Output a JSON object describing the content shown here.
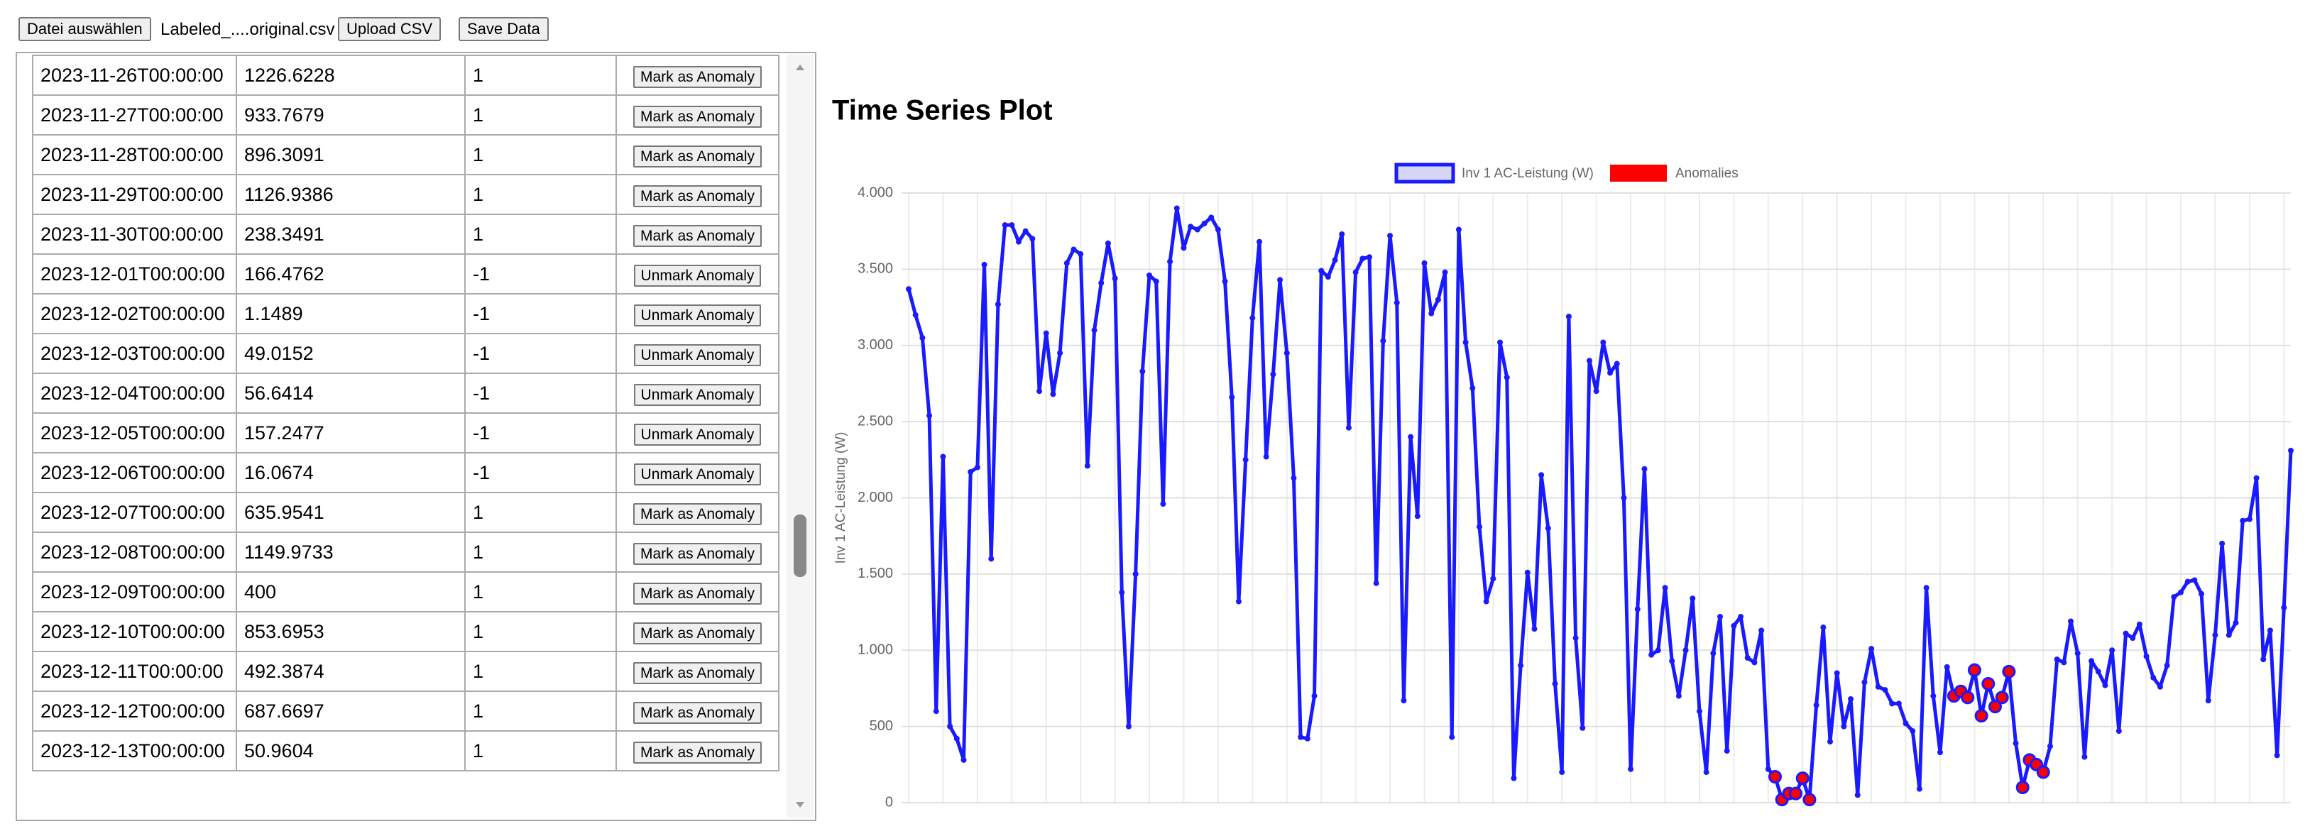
{
  "toolbar": {
    "choose_file": "Datei auswählen",
    "file_name": "Labeled_....original.csv",
    "upload": "Upload CSV",
    "save": "Save Data"
  },
  "table": {
    "rows": [
      [
        "2023-11-26T00:00:00",
        1226.6228,
        1,
        "Mark as Anomaly"
      ],
      [
        "2023-11-27T00:00:00",
        933.7679,
        1,
        "Mark as Anomaly"
      ],
      [
        "2023-11-28T00:00:00",
        896.3091,
        1,
        "Mark as Anomaly"
      ],
      [
        "2023-11-29T00:00:00",
        1126.9386,
        1,
        "Mark as Anomaly"
      ],
      [
        "2023-11-30T00:00:00",
        238.3491,
        1,
        "Mark as Anomaly"
      ],
      [
        "2023-12-01T00:00:00",
        166.4762,
        -1,
        "Unmark Anomaly"
      ],
      [
        "2023-12-02T00:00:00",
        1.1489,
        -1,
        "Unmark Anomaly"
      ],
      [
        "2023-12-03T00:00:00",
        49.0152,
        -1,
        "Unmark Anomaly"
      ],
      [
        "2023-12-04T00:00:00",
        56.6414,
        -1,
        "Unmark Anomaly"
      ],
      [
        "2023-12-05T00:00:00",
        157.2477,
        -1,
        "Unmark Anomaly"
      ],
      [
        "2023-12-06T00:00:00",
        16.0674,
        -1,
        "Unmark Anomaly"
      ],
      [
        "2023-12-07T00:00:00",
        635.9541,
        1,
        "Mark as Anomaly"
      ],
      [
        "2023-12-08T00:00:00",
        1149.9733,
        1,
        "Mark as Anomaly"
      ],
      [
        "2023-12-09T00:00:00",
        400,
        1,
        "Mark as Anomaly"
      ],
      [
        "2023-12-10T00:00:00",
        853.6953,
        1,
        "Mark as Anomaly"
      ],
      [
        "2023-12-11T00:00:00",
        492.3874,
        1,
        "Mark as Anomaly"
      ],
      [
        "2023-12-12T00:00:00",
        687.6697,
        1,
        "Mark as Anomaly"
      ],
      [
        "2023-12-13T00:00:00",
        50.9604,
        1,
        "Mark as Anomaly"
      ]
    ]
  },
  "chart_data": {
    "type": "line",
    "title": "Time Series Plot",
    "y_label": "Inv 1 AC-Leistung (W)",
    "grid": true,
    "ylim": [
      0,
      4000
    ],
    "yticks": [
      {
        "value": 0,
        "label": "0"
      },
      {
        "value": 500,
        "label": "500"
      },
      {
        "value": 1000,
        "label": "1.000"
      },
      {
        "value": 1500,
        "label": "1.500"
      },
      {
        "value": 2000,
        "label": "2.000"
      },
      {
        "value": 2500,
        "label": "2.500"
      },
      {
        "value": 3000,
        "label": "3.000"
      },
      {
        "value": 3500,
        "label": "3.500"
      },
      {
        "value": 4000,
        "label": "4.000"
      }
    ],
    "series": [
      {
        "name": "Inv 1 AC-Leistung (W)",
        "color": "#1a1aff",
        "values": [
          3370,
          3200,
          3050,
          2540,
          600,
          2270,
          500,
          420,
          280,
          2170,
          2200,
          3530,
          1600,
          3270,
          3790,
          3790,
          3680,
          3750,
          3700,
          2700,
          3080,
          2680,
          2950,
          3540,
          3630,
          3600,
          2210,
          3100,
          3410,
          3670,
          3440,
          1380,
          500,
          1500,
          2830,
          3460,
          3420,
          1960,
          3550,
          3900,
          3640,
          3780,
          3760,
          3800,
          3840,
          3760,
          3420,
          2660,
          1320,
          2250,
          3180,
          3680,
          2270,
          2810,
          3430,
          2950,
          2130,
          430,
          420,
          700,
          3490,
          3450,
          3560,
          3730,
          2460,
          3480,
          3570,
          3580,
          1440,
          3030,
          3720,
          3280,
          670,
          2400,
          1880,
          3540,
          3210,
          3300,
          3480,
          430,
          3760,
          3020,
          2720,
          1810,
          1320,
          1470,
          3020,
          2790,
          160,
          900,
          1510,
          1140,
          2150,
          1800,
          780,
          200,
          3190,
          1080,
          490,
          2900,
          2700,
          3020,
          2820,
          2880,
          2000,
          220,
          1270,
          2190,
          970,
          1000,
          1410,
          930,
          700,
          1000,
          1340,
          600,
          200,
          980,
          1220,
          340,
          1160,
          1220,
          950,
          920,
          1130,
          220,
          170,
          20,
          60,
          60,
          160,
          20,
          640,
          1150,
          400,
          850,
          500,
          680,
          50,
          790,
          1010,
          760,
          740,
          650,
          650,
          520,
          470,
          90,
          1410,
          700,
          330,
          890,
          700,
          730,
          690,
          870,
          570,
          780,
          630,
          690,
          860,
          390,
          100,
          280,
          250,
          200,
          370,
          940,
          920,
          1190,
          980,
          300,
          930,
          860,
          770,
          1000,
          470,
          1110,
          1080,
          1170,
          960,
          820,
          760,
          900,
          1350,
          1380,
          1450,
          1460,
          1370,
          670,
          1100,
          1700,
          1100,
          1180,
          1850,
          1860,
          2130,
          940,
          1130,
          310,
          1280,
          2310
        ]
      },
      {
        "name": "Anomalies",
        "color": "#ff0000",
        "values": [
          null,
          null,
          null,
          null,
          null,
          null,
          null,
          null,
          null,
          null,
          null,
          null,
          null,
          null,
          null,
          null,
          null,
          null,
          null,
          null,
          null,
          null,
          null,
          null,
          null,
          null,
          null,
          null,
          null,
          null,
          null,
          null,
          null,
          null,
          null,
          null,
          null,
          null,
          null,
          null,
          null,
          null,
          null,
          null,
          null,
          null,
          null,
          null,
          null,
          null,
          null,
          null,
          null,
          null,
          null,
          null,
          null,
          null,
          null,
          null,
          null,
          null,
          null,
          null,
          null,
          null,
          null,
          null,
          null,
          null,
          null,
          null,
          null,
          null,
          null,
          null,
          null,
          null,
          null,
          null,
          null,
          null,
          null,
          null,
          null,
          null,
          null,
          null,
          null,
          null,
          null,
          null,
          null,
          null,
          null,
          null,
          null,
          null,
          null,
          null,
          null,
          null,
          null,
          null,
          null,
          null,
          null,
          null,
          null,
          null,
          null,
          null,
          null,
          null,
          null,
          null,
          null,
          null,
          null,
          null,
          null,
          null,
          null,
          null,
          null,
          null,
          170,
          20,
          60,
          60,
          160,
          20,
          null,
          null,
          null,
          null,
          null,
          null,
          null,
          null,
          null,
          null,
          null,
          null,
          null,
          null,
          null,
          null,
          null,
          null,
          null,
          null,
          700,
          730,
          690,
          870,
          570,
          780,
          630,
          690,
          860,
          null,
          100,
          280,
          250,
          200,
          null,
          null,
          null,
          null,
          null,
          null,
          null,
          null,
          null,
          null,
          null,
          null,
          null,
          null,
          null,
          null,
          null,
          null,
          null,
          null,
          null,
          null,
          null,
          null,
          null,
          null,
          null,
          null,
          null,
          null,
          null,
          null,
          null,
          null,
          null,
          null
        ]
      }
    ]
  }
}
